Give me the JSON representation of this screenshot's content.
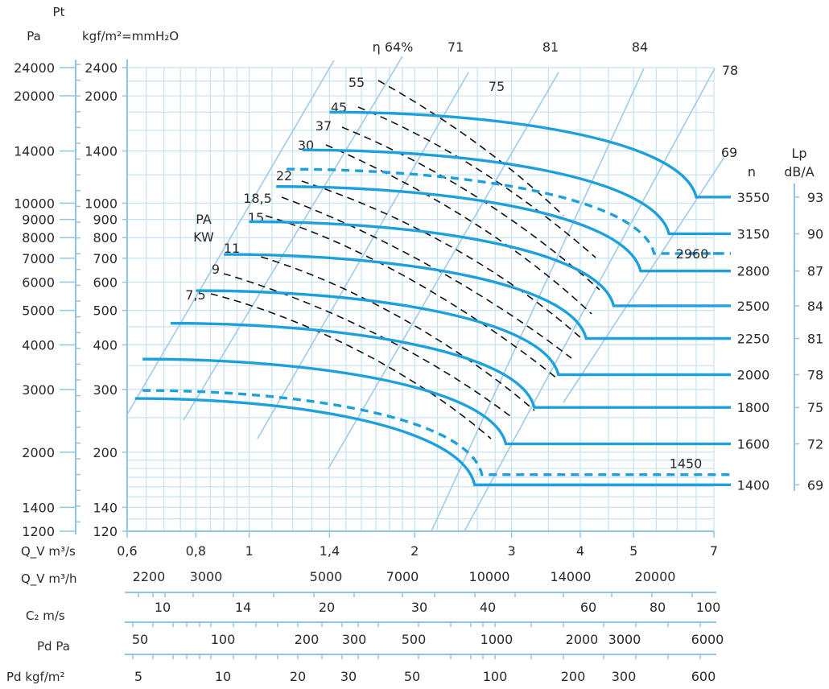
{
  "chart_data": {
    "type": "line",
    "title": "",
    "units": {
      "pt": "Pt",
      "pa": "Pa",
      "kgf": "kgf/m²=mmH₂O",
      "qv_s": "Q_V m³/s",
      "qv_h": "Q_V m³/h",
      "c2": "C₂ m/s",
      "pd_pa": "Pd Pa",
      "pd_kgf": "Pd kgf/m²",
      "n": "n",
      "lp": "Lp",
      "lp_unit": "dB/A",
      "pa_kw": [
        "PA",
        "KW"
      ]
    },
    "x_scale": "log",
    "y_scale": "log",
    "xlim": [
      0.6,
      7
    ],
    "ylim_kgf": [
      120,
      2400
    ],
    "x_ticks_m3s": [
      "0,6",
      "0,8",
      "1",
      "1,4",
      "2",
      "3",
      "4",
      "5",
      "7"
    ],
    "y_ticks_kgf": [
      "2400",
      "2000",
      "1400",
      "1000",
      "900",
      "800",
      "700",
      "600",
      "500",
      "400",
      "300",
      "200",
      "140",
      "120"
    ],
    "y_ticks_pa": [
      "24000",
      "20000",
      "14000",
      "10000",
      "9000",
      "8000",
      "7000",
      "6000",
      "5000",
      "4000",
      "3000",
      "2000",
      "1400",
      "1200"
    ],
    "qv_m3h_ticks": [
      "2200",
      "3000",
      "5000",
      "7000",
      "10000",
      "14000",
      "20000"
    ],
    "c2_ticks": [
      "10",
      "14",
      "20",
      "30",
      "40",
      "60",
      "80",
      "100"
    ],
    "pd_pa_ticks": [
      "50",
      "100",
      "200",
      "300",
      "500",
      "1000",
      "2000",
      "3000",
      "6000"
    ],
    "pd_kgf_ticks": [
      "5",
      "10",
      "20",
      "30",
      "50",
      "100",
      "200",
      "300",
      "600"
    ],
    "speed_curves": [
      {
        "n": "3550",
        "lp": "93",
        "dashed": false,
        "shutoff": 1800,
        "q_start": 1.4,
        "q_knee": 6.5,
        "p_end": 1040
      },
      {
        "n": "3150",
        "lp": "90",
        "dashed": false,
        "shutoff": 1410,
        "q_start": 1.25,
        "q_knee": 5.8,
        "p_end": 820
      },
      {
        "n": "2960",
        "lp": "",
        "dashed": true,
        "shutoff": 1245,
        "q_start": 1.17,
        "q_knee": 5.45,
        "p_end": 722
      },
      {
        "n": "2800",
        "lp": "87",
        "dashed": false,
        "shutoff": 1113,
        "q_start": 1.12,
        "q_knee": 5.15,
        "p_end": 645
      },
      {
        "n": "2500",
        "lp": "84",
        "dashed": false,
        "shutoff": 887,
        "q_start": 1.0,
        "q_knee": 4.6,
        "p_end": 515
      },
      {
        "n": "2250",
        "lp": "81",
        "dashed": false,
        "shutoff": 718,
        "q_start": 0.9,
        "q_knee": 4.1,
        "p_end": 417
      },
      {
        "n": "2000",
        "lp": "78",
        "dashed": false,
        "shutoff": 568,
        "q_start": 0.8,
        "q_knee": 3.65,
        "p_end": 330
      },
      {
        "n": "1800",
        "lp": "75",
        "dashed": false,
        "shutoff": 460,
        "q_start": 0.72,
        "q_knee": 3.3,
        "p_end": 267
      },
      {
        "n": "1600",
        "lp": "72",
        "dashed": false,
        "shutoff": 365,
        "q_start": 0.64,
        "q_knee": 2.93,
        "p_end": 211
      },
      {
        "n": "1450",
        "lp": "",
        "dashed": true,
        "shutoff": 298,
        "q_start": 0.64,
        "q_knee": 2.65,
        "p_end": 173
      },
      {
        "n": "1400",
        "lp": "69",
        "dashed": false,
        "shutoff": 283,
        "q_start": 0.62,
        "q_knee": 2.57,
        "p_end": 162
      }
    ],
    "efficiency_lines": [
      "η 64%",
      "71",
      "81",
      "84",
      "78",
      "69",
      "75"
    ],
    "power_labels_kw": [
      "55",
      "45",
      "37",
      "30",
      "22",
      "18,5",
      "15",
      "11",
      "9",
      "7,5"
    ]
  }
}
